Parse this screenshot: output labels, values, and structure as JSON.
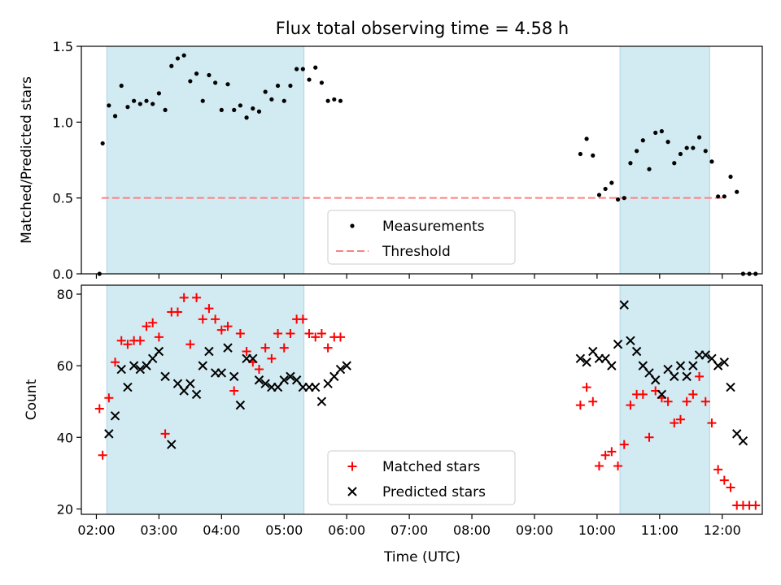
{
  "chart_data": {
    "title": "Flux total observing time = 4.58 h",
    "xlabel": "Time (UTC)",
    "x_tick_labels": [
      "02:00",
      "03:00",
      "04:00",
      "05:00",
      "06:00",
      "07:00",
      "08:00",
      "09:00",
      "10:00",
      "11:00",
      "12:00"
    ],
    "shaded_intervals": [
      [
        "02:10",
        "05:19"
      ],
      [
        "10:22",
        "11:48"
      ]
    ],
    "colors": {
      "shade": "#add8e6",
      "threshold": "#ff8080",
      "matched": "#ff0000",
      "predicted": "#000000",
      "measure": "#000000"
    },
    "panels": [
      {
        "type": "scatter",
        "ylabel": "Matched/Predicted stars",
        "ylim": [
          0,
          1.5
        ],
        "yticks": [
          0,
          0.5,
          1.0,
          1.5
        ],
        "ytick_labels": [
          "0.0",
          "0.5",
          "1.0",
          "1.5"
        ],
        "legend": [
          "Measurements",
          "Threshold"
        ],
        "legend_position": "lower-center",
        "threshold": {
          "y": 0.5,
          "x_range": [
            "02:05",
            "12:00"
          ]
        },
        "series": [
          {
            "name": "Measurements",
            "points": [
              [
                "02:03",
                0.0
              ],
              [
                "02:06",
                0.86
              ],
              [
                "02:12",
                1.11
              ],
              [
                "02:18",
                1.04
              ],
              [
                "02:24",
                1.24
              ],
              [
                "02:30",
                1.1
              ],
              [
                "02:36",
                1.14
              ],
              [
                "02:42",
                1.12
              ],
              [
                "02:48",
                1.14
              ],
              [
                "02:54",
                1.12
              ],
              [
                "03:00",
                1.19
              ],
              [
                "03:06",
                1.08
              ],
              [
                "03:12",
                1.37
              ],
              [
                "03:18",
                1.42
              ],
              [
                "03:24",
                1.44
              ],
              [
                "03:30",
                1.27
              ],
              [
                "03:36",
                1.32
              ],
              [
                "03:42",
                1.14
              ],
              [
                "03:48",
                1.31
              ],
              [
                "03:54",
                1.26
              ],
              [
                "04:00",
                1.08
              ],
              [
                "04:06",
                1.25
              ],
              [
                "04:12",
                1.08
              ],
              [
                "04:18",
                1.11
              ],
              [
                "04:24",
                1.03
              ],
              [
                "04:30",
                1.09
              ],
              [
                "04:36",
                1.07
              ],
              [
                "04:42",
                1.2
              ],
              [
                "04:48",
                1.15
              ],
              [
                "04:54",
                1.24
              ],
              [
                "05:00",
                1.14
              ],
              [
                "05:06",
                1.24
              ],
              [
                "05:12",
                1.35
              ],
              [
                "05:18",
                1.35
              ],
              [
                "05:24",
                1.28
              ],
              [
                "05:30",
                1.36
              ],
              [
                "05:36",
                1.26
              ],
              [
                "05:42",
                1.14
              ],
              [
                "05:48",
                1.15
              ],
              [
                "05:54",
                1.14
              ],
              [
                "09:44",
                0.79
              ],
              [
                "09:50",
                0.89
              ],
              [
                "09:56",
                0.78
              ],
              [
                "10:02",
                0.52
              ],
              [
                "10:08",
                0.56
              ],
              [
                "10:14",
                0.6
              ],
              [
                "10:20",
                0.49
              ],
              [
                "10:26",
                0.5
              ],
              [
                "10:32",
                0.73
              ],
              [
                "10:38",
                0.81
              ],
              [
                "10:44",
                0.88
              ],
              [
                "10:50",
                0.69
              ],
              [
                "10:56",
                0.93
              ],
              [
                "11:02",
                0.94
              ],
              [
                "11:08",
                0.87
              ],
              [
                "11:14",
                0.73
              ],
              [
                "11:20",
                0.79
              ],
              [
                "11:26",
                0.83
              ],
              [
                "11:32",
                0.83
              ],
              [
                "11:38",
                0.9
              ],
              [
                "11:44",
                0.81
              ],
              [
                "11:50",
                0.74
              ],
              [
                "11:56",
                0.51
              ],
              [
                "12:02",
                0.51
              ],
              [
                "12:08",
                0.64
              ],
              [
                "12:14",
                0.54
              ],
              [
                "12:20",
                0.0
              ],
              [
                "12:26",
                0.0
              ],
              [
                "12:32",
                0.0
              ]
            ]
          }
        ]
      },
      {
        "type": "scatter",
        "ylabel": "Count",
        "ylim": [
          18.5,
          82.5
        ],
        "yticks": [
          20,
          40,
          60,
          80
        ],
        "ytick_labels": [
          "20",
          "40",
          "60",
          "80"
        ],
        "legend": [
          "Matched stars",
          "Predicted stars"
        ],
        "legend_position": "lower-center",
        "series": [
          {
            "name": "Matched stars",
            "marker": "+",
            "points": [
              [
                "02:03",
                48
              ],
              [
                "02:06",
                35
              ],
              [
                "02:12",
                51
              ],
              [
                "02:18",
                61
              ],
              [
                "02:24",
                67
              ],
              [
                "02:30",
                66
              ],
              [
                "02:36",
                67
              ],
              [
                "02:42",
                67
              ],
              [
                "02:48",
                71
              ],
              [
                "02:54",
                72
              ],
              [
                "03:00",
                68
              ],
              [
                "03:06",
                41
              ],
              [
                "03:12",
                75
              ],
              [
                "03:18",
                75
              ],
              [
                "03:24",
                79
              ],
              [
                "03:30",
                66
              ],
              [
                "03:36",
                79
              ],
              [
                "03:42",
                73
              ],
              [
                "03:48",
                76
              ],
              [
                "03:54",
                73
              ],
              [
                "04:00",
                70
              ],
              [
                "04:06",
                71
              ],
              [
                "04:12",
                53
              ],
              [
                "04:18",
                69
              ],
              [
                "04:24",
                64
              ],
              [
                "04:30",
                61
              ],
              [
                "04:36",
                59
              ],
              [
                "04:42",
                65
              ],
              [
                "04:48",
                62
              ],
              [
                "04:54",
                69
              ],
              [
                "05:00",
                65
              ],
              [
                "05:06",
                69
              ],
              [
                "05:12",
                73
              ],
              [
                "05:18",
                73
              ],
              [
                "05:24",
                69
              ],
              [
                "05:30",
                68
              ],
              [
                "05:36",
                69
              ],
              [
                "05:42",
                65
              ],
              [
                "05:48",
                68
              ],
              [
                "05:54",
                68
              ],
              [
                "09:44",
                49
              ],
              [
                "09:50",
                54
              ],
              [
                "09:56",
                50
              ],
              [
                "10:02",
                32
              ],
              [
                "10:08",
                35
              ],
              [
                "10:14",
                36
              ],
              [
                "10:20",
                32
              ],
              [
                "10:26",
                38
              ],
              [
                "10:32",
                49
              ],
              [
                "10:38",
                52
              ],
              [
                "10:44",
                52
              ],
              [
                "10:50",
                40
              ],
              [
                "10:56",
                53
              ],
              [
                "11:02",
                51
              ],
              [
                "11:08",
                50
              ],
              [
                "11:14",
                44
              ],
              [
                "11:20",
                45
              ],
              [
                "11:26",
                50
              ],
              [
                "11:32",
                52
              ],
              [
                "11:38",
                57
              ],
              [
                "11:44",
                50
              ],
              [
                "11:50",
                44
              ],
              [
                "11:56",
                31
              ],
              [
                "12:02",
                28
              ],
              [
                "12:08",
                26
              ],
              [
                "12:14",
                21
              ],
              [
                "12:20",
                21
              ],
              [
                "12:26",
                21
              ],
              [
                "12:32",
                21
              ]
            ]
          },
          {
            "name": "Predicted stars",
            "marker": "x",
            "points": [
              [
                "02:12",
                41
              ],
              [
                "02:18",
                46
              ],
              [
                "02:24",
                59
              ],
              [
                "02:30",
                54
              ],
              [
                "02:36",
                60
              ],
              [
                "02:42",
                59
              ],
              [
                "02:48",
                60
              ],
              [
                "02:54",
                62
              ],
              [
                "03:00",
                64
              ],
              [
                "03:06",
                57
              ],
              [
                "03:12",
                38
              ],
              [
                "03:18",
                55
              ],
              [
                "03:24",
                53
              ],
              [
                "03:30",
                55
              ],
              [
                "03:36",
                52
              ],
              [
                "03:42",
                60
              ],
              [
                "03:48",
                64
              ],
              [
                "03:54",
                58
              ],
              [
                "04:00",
                58
              ],
              [
                "04:06",
                65
              ],
              [
                "04:12",
                57
              ],
              [
                "04:18",
                49
              ],
              [
                "04:24",
                62
              ],
              [
                "04:30",
                62
              ],
              [
                "04:36",
                56
              ],
              [
                "04:42",
                55
              ],
              [
                "04:48",
                54
              ],
              [
                "04:54",
                54
              ],
              [
                "05:00",
                56
              ],
              [
                "05:06",
                57
              ],
              [
                "05:12",
                56
              ],
              [
                "05:18",
                54
              ],
              [
                "05:24",
                54
              ],
              [
                "05:30",
                54
              ],
              [
                "05:36",
                50
              ],
              [
                "05:42",
                55
              ],
              [
                "05:48",
                57
              ],
              [
                "05:54",
                59
              ],
              [
                "06:00",
                60
              ],
              [
                "09:44",
                62
              ],
              [
                "09:50",
                61
              ],
              [
                "09:56",
                64
              ],
              [
                "10:02",
                62
              ],
              [
                "10:08",
                62
              ],
              [
                "10:14",
                60
              ],
              [
                "10:20",
                66
              ],
              [
                "10:26",
                77
              ],
              [
                "10:32",
                67
              ],
              [
                "10:38",
                64
              ],
              [
                "10:44",
                60
              ],
              [
                "10:50",
                58
              ],
              [
                "10:56",
                56
              ],
              [
                "11:02",
                52
              ],
              [
                "11:08",
                59
              ],
              [
                "11:14",
                57
              ],
              [
                "11:20",
                60
              ],
              [
                "11:26",
                57
              ],
              [
                "11:32",
                60
              ],
              [
                "11:38",
                63
              ],
              [
                "11:44",
                63
              ],
              [
                "11:50",
                62
              ],
              [
                "11:56",
                60
              ],
              [
                "12:02",
                61
              ],
              [
                "12:08",
                54
              ],
              [
                "12:14",
                41
              ],
              [
                "12:20",
                39
              ]
            ]
          }
        ]
      }
    ]
  }
}
